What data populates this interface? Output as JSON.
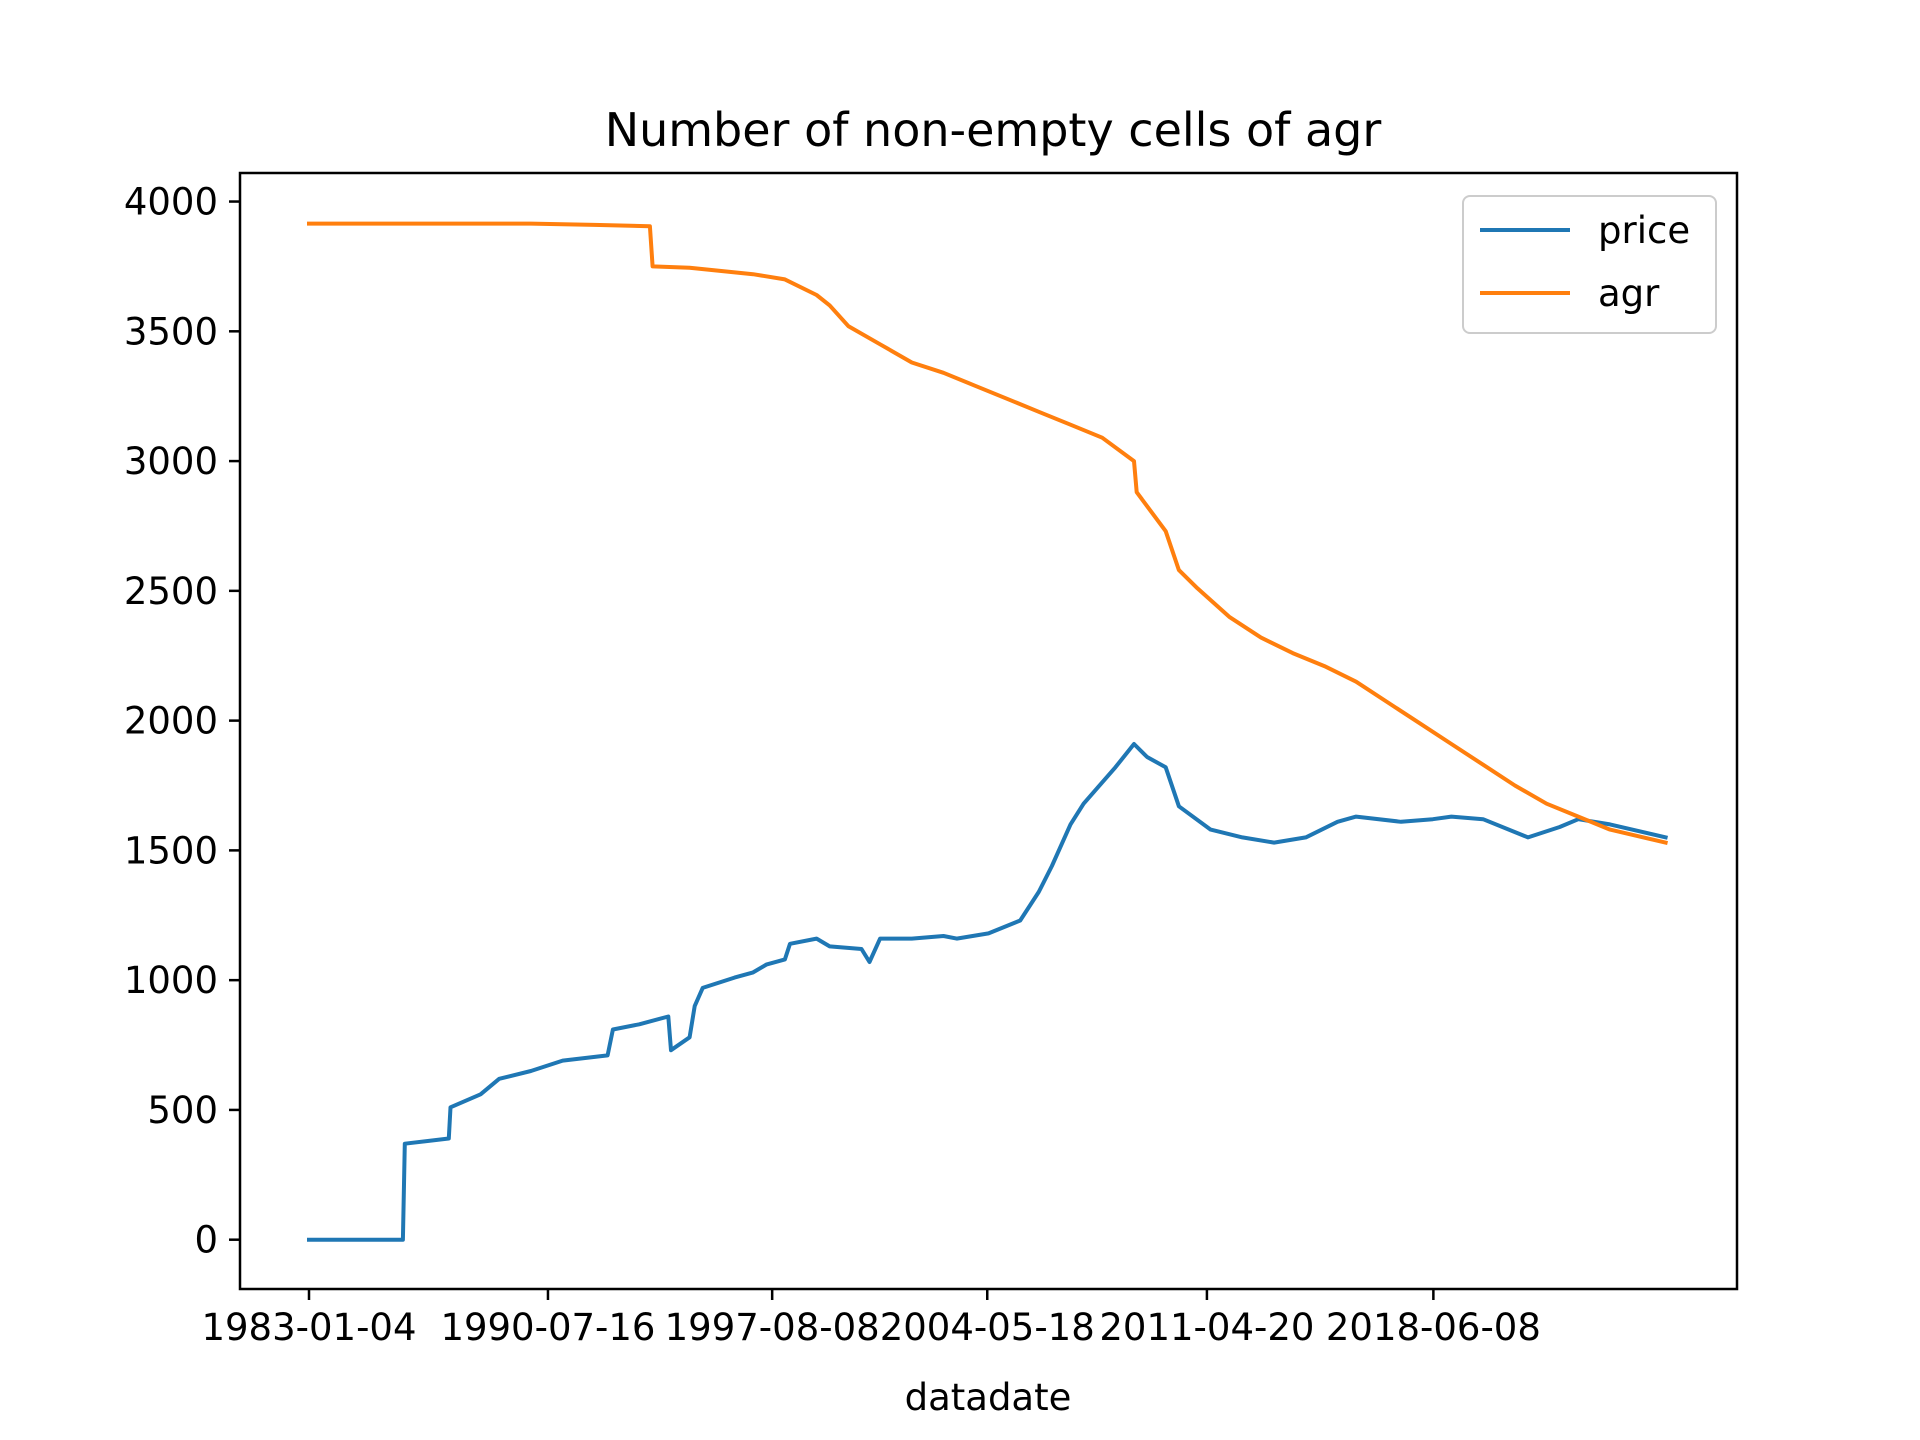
{
  "chart_data": {
    "type": "line",
    "title": "Number of non-empty cells of agr",
    "xlabel": "datadate",
    "ylabel": "",
    "x_ticks": [
      "1983-01-04",
      "1990-07-16",
      "1997-08-08",
      "2004-05-18",
      "2011-04-20",
      "2018-06-08"
    ],
    "y_ticks": [
      0,
      500,
      1000,
      1500,
      2000,
      2500,
      3000,
      3500,
      4000
    ],
    "ylim": [
      -190,
      4110
    ],
    "xlim": [
      "1980-11-01",
      "2028-01-01"
    ],
    "grid": false,
    "legend_position": "top-right",
    "colors": {
      "price": "#1f77b4",
      "agr": "#ff7f0e"
    },
    "series": [
      {
        "name": "price",
        "points": [
          [
            "1983-01-04",
            0
          ],
          [
            "1985-12-20",
            0
          ],
          [
            "1986-01-10",
            370
          ],
          [
            "1987-06-01",
            390
          ],
          [
            "1987-06-20",
            510
          ],
          [
            "1988-06-01",
            560
          ],
          [
            "1989-01-01",
            620
          ],
          [
            "1990-01-01",
            650
          ],
          [
            "1991-01-01",
            690
          ],
          [
            "1992-06-01",
            710
          ],
          [
            "1992-08-01",
            810
          ],
          [
            "1993-06-01",
            830
          ],
          [
            "1994-05-01",
            860
          ],
          [
            "1994-06-01",
            730
          ],
          [
            "1995-01-01",
            780
          ],
          [
            "1995-03-01",
            900
          ],
          [
            "1995-06-01",
            970
          ],
          [
            "1996-06-01",
            1010
          ],
          [
            "1997-01-01",
            1030
          ],
          [
            "1997-06-01",
            1060
          ],
          [
            "1998-01-01",
            1080
          ],
          [
            "1998-03-01",
            1140
          ],
          [
            "1999-01-01",
            1160
          ],
          [
            "1999-06-01",
            1130
          ],
          [
            "2000-06-01",
            1120
          ],
          [
            "2000-09-01",
            1070
          ],
          [
            "2001-01-01",
            1160
          ],
          [
            "2002-01-01",
            1160
          ],
          [
            "2003-01-01",
            1170
          ],
          [
            "2003-06-01",
            1160
          ],
          [
            "2004-06-01",
            1180
          ],
          [
            "2005-06-01",
            1230
          ],
          [
            "2006-01-01",
            1340
          ],
          [
            "2006-06-01",
            1440
          ],
          [
            "2007-01-01",
            1600
          ],
          [
            "2007-06-01",
            1680
          ],
          [
            "2008-06-01",
            1820
          ],
          [
            "2009-01-01",
            1910
          ],
          [
            "2009-06-01",
            1860
          ],
          [
            "2010-01-01",
            1820
          ],
          [
            "2010-06-01",
            1670
          ],
          [
            "2011-06-01",
            1580
          ],
          [
            "2012-06-01",
            1550
          ],
          [
            "2013-06-01",
            1530
          ],
          [
            "2014-06-01",
            1550
          ],
          [
            "2015-06-01",
            1610
          ],
          [
            "2016-01-01",
            1630
          ],
          [
            "2017-06-01",
            1610
          ],
          [
            "2018-06-01",
            1620
          ],
          [
            "2019-01-01",
            1630
          ],
          [
            "2020-01-01",
            1620
          ],
          [
            "2021-06-01",
            1550
          ],
          [
            "2022-06-01",
            1590
          ],
          [
            "2023-01-01",
            1620
          ],
          [
            "2024-01-01",
            1600
          ],
          [
            "2025-10-01",
            1550
          ]
        ]
      },
      {
        "name": "agr",
        "points": [
          [
            "1983-01-04",
            3915
          ],
          [
            "1990-01-01",
            3915
          ],
          [
            "1992-01-01",
            3910
          ],
          [
            "1993-10-01",
            3905
          ],
          [
            "1993-11-01",
            3750
          ],
          [
            "1995-01-01",
            3745
          ],
          [
            "1997-01-01",
            3720
          ],
          [
            "1998-01-01",
            3700
          ],
          [
            "1999-01-01",
            3640
          ],
          [
            "1999-06-01",
            3600
          ],
          [
            "2000-01-01",
            3520
          ],
          [
            "2001-01-01",
            3450
          ],
          [
            "2002-01-01",
            3380
          ],
          [
            "2003-01-01",
            3340
          ],
          [
            "2004-01-01",
            3290
          ],
          [
            "2005-01-01",
            3240
          ],
          [
            "2006-01-01",
            3190
          ],
          [
            "2007-01-01",
            3140
          ],
          [
            "2008-01-01",
            3090
          ],
          [
            "2009-01-01",
            3000
          ],
          [
            "2009-02-01",
            2880
          ],
          [
            "2010-01-01",
            2730
          ],
          [
            "2010-06-01",
            2580
          ],
          [
            "2011-01-01",
            2510
          ],
          [
            "2012-01-01",
            2400
          ],
          [
            "2013-01-01",
            2320
          ],
          [
            "2014-01-01",
            2260
          ],
          [
            "2015-01-01",
            2210
          ],
          [
            "2016-01-01",
            2150
          ],
          [
            "2017-01-01",
            2070
          ],
          [
            "2018-01-01",
            1990
          ],
          [
            "2019-01-01",
            1910
          ],
          [
            "2020-01-01",
            1830
          ],
          [
            "2021-01-01",
            1750
          ],
          [
            "2022-01-01",
            1680
          ],
          [
            "2023-01-01",
            1630
          ],
          [
            "2024-01-01",
            1580
          ],
          [
            "2025-10-01",
            1530
          ]
        ]
      }
    ]
  }
}
